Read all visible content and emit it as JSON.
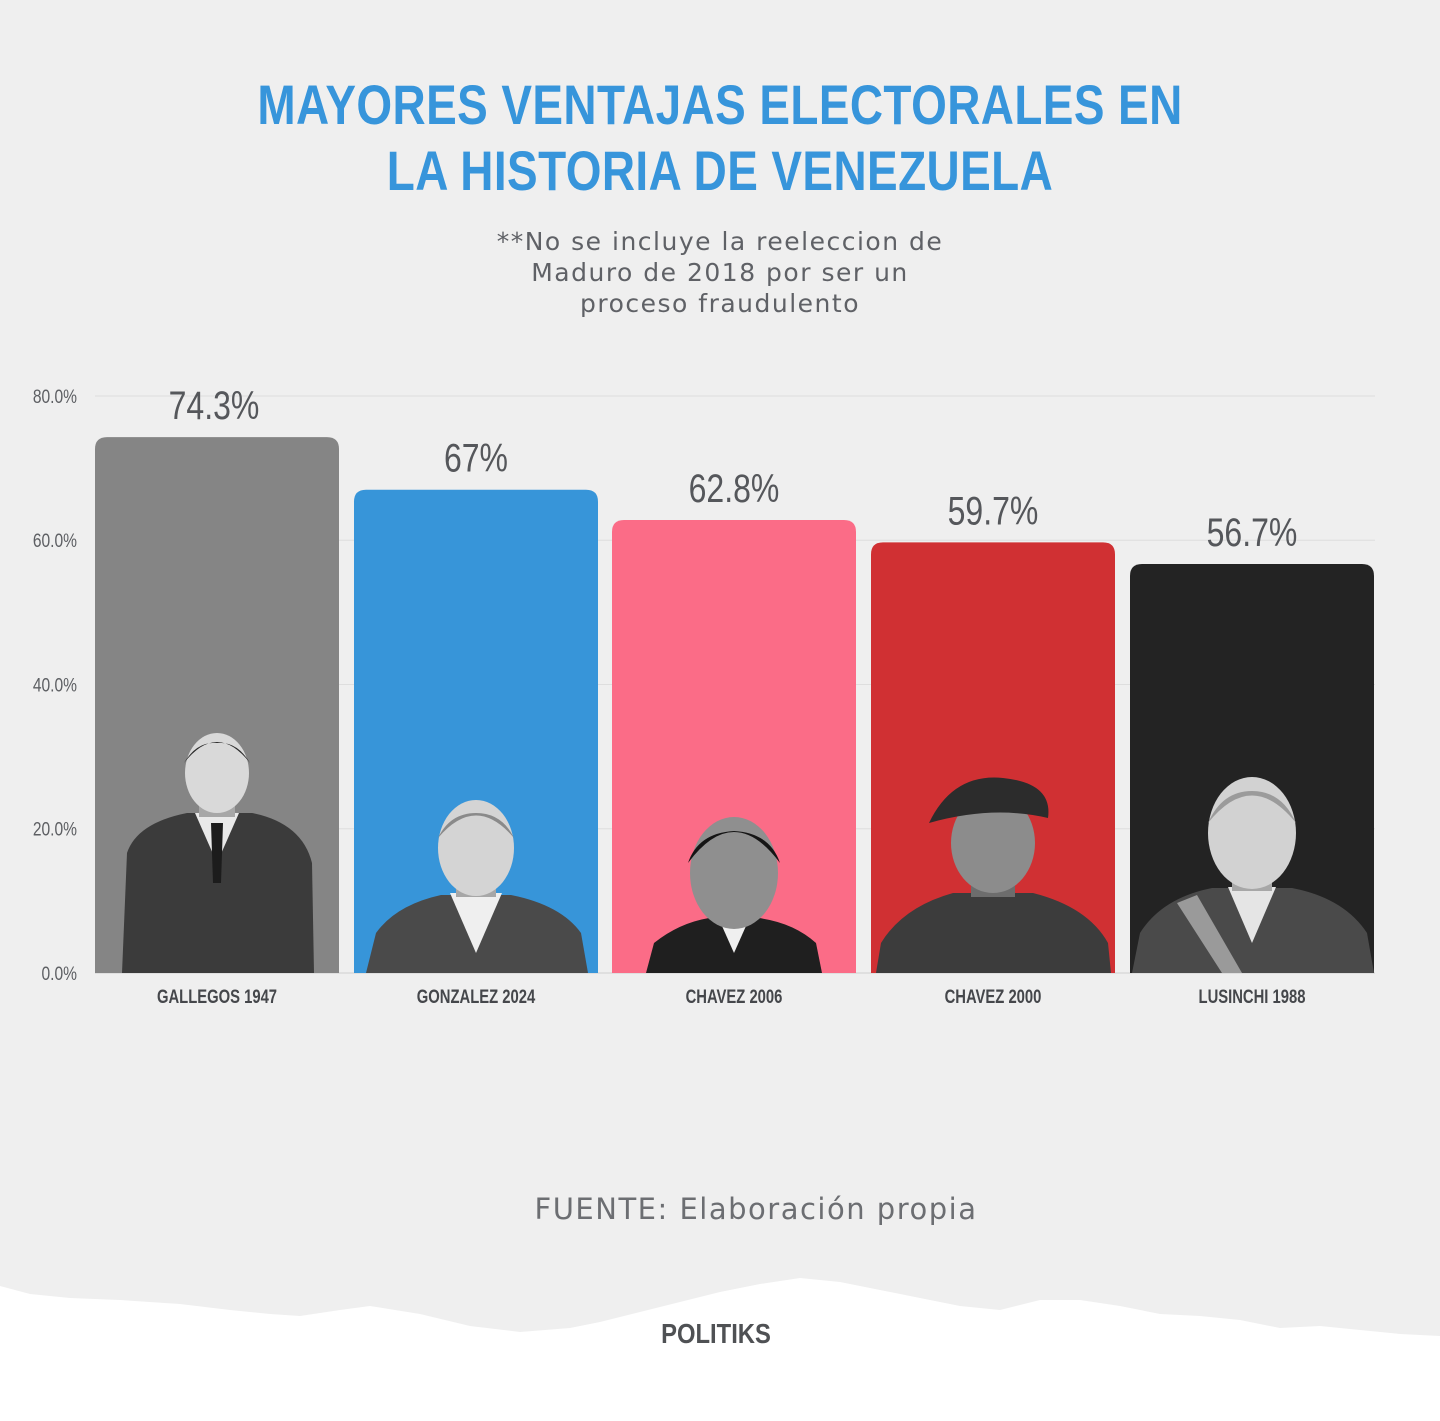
{
  "title_lines": [
    "MAYORES VENTAJAS ELECTORALES EN",
    "LA HISTORIA DE VENEZUELA"
  ],
  "subtitle_lines": [
    "**No se incluye la reeleccion de",
    "Maduro de 2018 por ser un",
    "proceso fraudulento"
  ],
  "source": "FUENTE: Elaboración propia",
  "brand": "POLITIKS",
  "colors": {
    "title": "#3795db",
    "bars": [
      "#858585",
      "#3795d9",
      "#fb6c87",
      "#d03033",
      "#232323"
    ]
  },
  "chart_data": {
    "type": "bar",
    "categories": [
      "GALLEGOS 1947",
      "GONZALEZ 2024",
      "CHAVEZ 2006",
      "CHAVEZ 2000",
      "LUSINCHI 1988"
    ],
    "values": [
      74.3,
      67,
      62.8,
      59.7,
      56.7
    ],
    "value_labels": [
      "74.3%",
      "67%",
      "62.8%",
      "59.7%",
      "56.7%"
    ],
    "yticks": [
      "0.0%",
      "20.0%",
      "40.0%",
      "60.0%",
      "80.0%"
    ],
    "ytick_values": [
      0,
      20,
      40,
      60,
      80
    ],
    "ylim": [
      0,
      80
    ],
    "grid": true,
    "bar_images": [
      "portrait-gallegos",
      "portrait-gonzalez",
      "portrait-chavez",
      "portrait-chavez-beret",
      "portrait-lusinchi"
    ]
  }
}
